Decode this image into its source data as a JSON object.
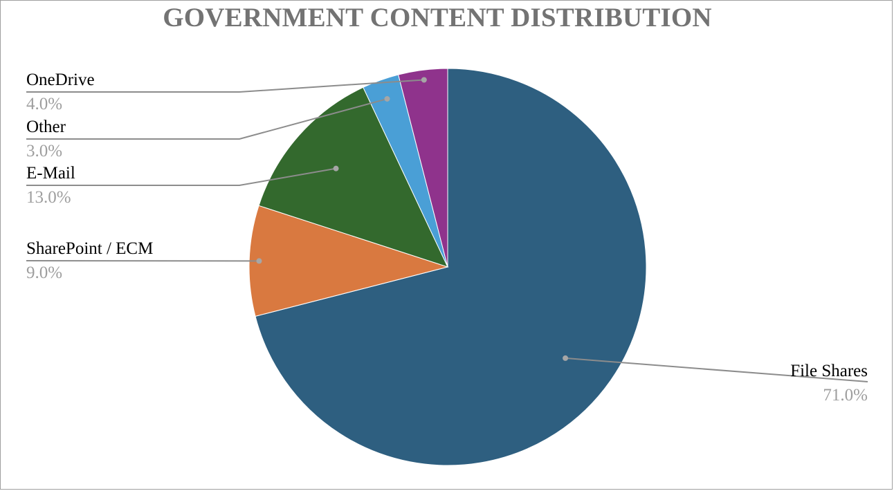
{
  "chart_data": {
    "type": "pie",
    "title": "GOVERNMENT CONTENT DISTRIBUTION",
    "start_angle_deg": 0,
    "direction": "clockwise",
    "slices": [
      {
        "label": "File Shares",
        "value": 71.0,
        "percent_label": "71.0%",
        "color": "#2e5f80"
      },
      {
        "label": "SharePoint / ECM",
        "value": 9.0,
        "percent_label": "9.0%",
        "color": "#d97940"
      },
      {
        "label": "E-Mail",
        "value": 13.0,
        "percent_label": "13.0%",
        "color": "#33692d"
      },
      {
        "label": "Other",
        "value": 3.0,
        "percent_label": "3.0%",
        "color": "#4a9fd6"
      },
      {
        "label": "OneDrive",
        "value": 4.0,
        "percent_label": "4.0%",
        "color": "#8f338c"
      }
    ],
    "leader_line_color": "#8c8c8c"
  }
}
